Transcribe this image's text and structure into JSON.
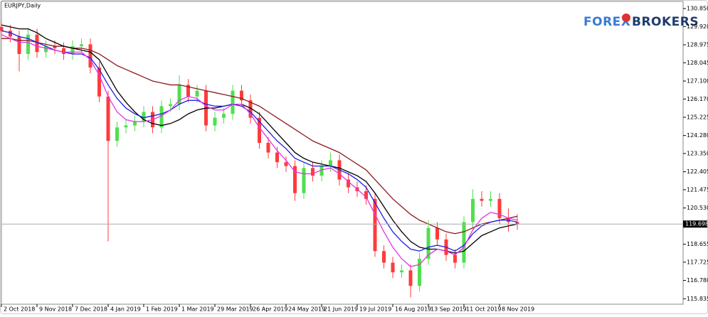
{
  "chart_data": {
    "type": "candlestick",
    "title": "EURJPY,Daily",
    "categories": [
      "2 Oct 2018",
      null,
      null,
      null,
      "9 Nov 2018",
      null,
      null,
      null,
      "7 Dec 2018",
      null,
      null,
      null,
      "4 Jan 2019",
      null,
      null,
      null,
      "1 Feb 2019",
      null,
      null,
      null,
      "1 Mar 2019",
      null,
      null,
      null,
      "29 Mar 2019",
      null,
      null,
      null,
      "26 Apr 2019",
      null,
      null,
      null,
      "24 May 2019",
      null,
      null,
      null,
      "21 Jun 2019",
      null,
      null,
      null,
      "19 Jul 2019",
      null,
      null,
      null,
      "16 Aug 2019",
      null,
      null,
      null,
      "13 Sep 2019",
      null,
      null,
      null,
      "11 Oct 2019",
      null,
      null,
      null,
      "8 Nov 2019",
      null,
      null
    ],
    "open": [
      129.9,
      129.7,
      129.4,
      128.5,
      129.5,
      128.6,
      128.9,
      128.8,
      128.5,
      128.9,
      129.0,
      127.8,
      126.3,
      124.0,
      124.7,
      124.8,
      125.0,
      125.5,
      124.7,
      125.8,
      125.9,
      126.9,
      126.3,
      126.6,
      124.8,
      125.2,
      125.4,
      126.6,
      126.1,
      125.2,
      123.9,
      123.4,
      122.9,
      122.7,
      121.3,
      122.6,
      122.2,
      122.7,
      123.0,
      122.0,
      121.6,
      121.4,
      121.0,
      118.3,
      117.7,
      117.2,
      117.3,
      116.5,
      117.9,
      119.5,
      118.9,
      118.1,
      117.7,
      119.8,
      121.0,
      120.9,
      121.0,
      120.0,
      119.8
    ],
    "high": [
      130.2,
      130.0,
      129.7,
      129.8,
      129.8,
      129.2,
      129.2,
      129.1,
      129.2,
      129.3,
      129.3,
      128.1,
      126.6,
      125.0,
      125.1,
      125.3,
      125.8,
      125.8,
      126.1,
      126.2,
      127.4,
      127.2,
      126.9,
      126.9,
      125.5,
      125.7,
      126.9,
      126.9,
      126.4,
      125.5,
      124.2,
      123.7,
      123.2,
      123.0,
      122.9,
      122.9,
      123.0,
      123.4,
      123.3,
      122.3,
      121.9,
      121.7,
      121.3,
      118.6,
      118.0,
      117.6,
      117.6,
      118.2,
      119.9,
      119.8,
      119.2,
      118.4,
      120.1,
      121.5,
      121.4,
      121.4,
      121.3,
      120.5,
      120.2
    ],
    "low": [
      129.4,
      129.1,
      127.6,
      128.2,
      128.3,
      128.3,
      128.5,
      128.2,
      128.2,
      128.6,
      127.5,
      126.0,
      118.8,
      123.7,
      124.4,
      124.5,
      124.7,
      124.4,
      124.4,
      125.5,
      125.6,
      126.0,
      126.0,
      124.5,
      124.5,
      124.9,
      125.1,
      125.8,
      124.9,
      123.6,
      123.1,
      122.6,
      122.4,
      120.9,
      121.0,
      121.9,
      121.9,
      122.4,
      121.7,
      121.3,
      121.1,
      120.7,
      118.0,
      117.4,
      116.9,
      116.9,
      115.9,
      116.2,
      117.6,
      118.6,
      117.8,
      117.4,
      117.4,
      119.5,
      120.6,
      120.6,
      119.7,
      119.3,
      119.4
    ],
    "close": [
      129.7,
      129.4,
      128.5,
      129.5,
      128.6,
      128.9,
      128.8,
      128.5,
      128.9,
      129.0,
      127.8,
      126.3,
      124.0,
      124.7,
      124.8,
      125.0,
      125.5,
      124.7,
      125.8,
      125.9,
      126.9,
      126.3,
      126.6,
      124.8,
      125.2,
      125.4,
      126.6,
      126.1,
      125.2,
      123.9,
      123.4,
      122.9,
      122.7,
      121.3,
      122.6,
      122.2,
      122.7,
      123.0,
      122.0,
      121.6,
      121.4,
      121.0,
      118.3,
      117.7,
      117.2,
      117.3,
      116.5,
      117.9,
      119.5,
      118.9,
      118.1,
      117.7,
      119.8,
      121.0,
      120.9,
      121.0,
      120.0,
      119.8,
      119.7
    ],
    "up_color": "#4ee04e",
    "down_color": "#ff3b3b",
    "lines": [
      {
        "color": "#8b1a1a",
        "values": [
          129.3,
          129.3,
          129.2,
          129.2,
          129.1,
          129.0,
          128.9,
          128.9,
          128.8,
          128.8,
          128.7,
          128.5,
          128.2,
          127.9,
          127.7,
          127.5,
          127.3,
          127.1,
          127.0,
          126.9,
          126.9,
          126.8,
          126.7,
          126.6,
          126.5,
          126.4,
          126.3,
          126.2,
          126.0,
          125.8,
          125.5,
          125.2,
          124.9,
          124.6,
          124.3,
          124.0,
          123.8,
          123.6,
          123.4,
          123.1,
          122.8,
          122.5,
          122.0,
          121.5,
          121.0,
          120.6,
          120.2,
          119.9,
          119.7,
          119.5,
          119.3,
          119.2,
          119.3,
          119.5,
          119.7,
          119.8,
          119.9,
          120.0,
          120.1
        ]
      },
      {
        "color": "#000000",
        "values": [
          130.0,
          129.9,
          129.8,
          129.8,
          129.6,
          129.3,
          129.1,
          128.9,
          128.8,
          128.7,
          128.6,
          128.2,
          127.4,
          126.6,
          126.0,
          125.5,
          125.1,
          124.9,
          124.8,
          124.9,
          125.1,
          125.4,
          125.6,
          125.7,
          125.7,
          125.8,
          125.9,
          125.9,
          125.7,
          125.4,
          124.9,
          124.4,
          123.9,
          123.4,
          123.1,
          122.9,
          122.8,
          122.7,
          122.6,
          122.4,
          122.2,
          121.9,
          121.3,
          120.6,
          119.9,
          119.3,
          118.8,
          118.5,
          118.4,
          118.4,
          118.3,
          118.2,
          118.3,
          118.7,
          119.1,
          119.3,
          119.5,
          119.6,
          119.7
        ]
      },
      {
        "color": "#1e1ee6",
        "values": [
          129.7,
          129.6,
          129.4,
          129.3,
          129.1,
          128.9,
          128.7,
          128.6,
          128.5,
          128.5,
          128.3,
          127.7,
          126.9,
          126.2,
          125.7,
          125.4,
          125.2,
          125.3,
          125.4,
          125.6,
          125.9,
          126.1,
          126.1,
          125.9,
          125.8,
          125.8,
          125.9,
          125.8,
          125.5,
          125.0,
          124.5,
          124.0,
          123.6,
          123.1,
          122.9,
          122.7,
          122.7,
          122.7,
          122.5,
          122.3,
          122.0,
          121.6,
          120.8,
          120.0,
          119.3,
          118.8,
          118.4,
          118.3,
          118.5,
          118.6,
          118.5,
          118.3,
          118.6,
          119.2,
          119.6,
          119.8,
          119.9,
          119.9,
          119.8
        ]
      },
      {
        "color": "#e632e6",
        "values": [
          129.5,
          129.3,
          129.1,
          129.1,
          128.9,
          128.8,
          128.7,
          128.6,
          128.6,
          128.6,
          128.2,
          127.4,
          126.3,
          125.5,
          125.1,
          125.0,
          125.0,
          125.1,
          125.3,
          125.6,
          126.1,
          126.3,
          126.2,
          125.8,
          125.6,
          125.6,
          125.9,
          125.9,
          125.4,
          124.7,
          124.1,
          123.5,
          123.0,
          122.4,
          122.3,
          122.3,
          122.5,
          122.6,
          122.3,
          121.9,
          121.5,
          121.1,
          120.2,
          119.3,
          118.5,
          117.9,
          117.5,
          117.6,
          118.1,
          118.4,
          118.3,
          118.1,
          118.5,
          119.4,
          120.0,
          120.3,
          120.2,
          120.0,
          119.9
        ]
      }
    ],
    "current_price": 119.698,
    "ylim": [
      115.55,
      131.22
    ],
    "yticks": [
      {
        "value": 130.85,
        "label": "130.850"
      },
      {
        "value": 129.92,
        "label": "129.920"
      },
      {
        "value": 128.975,
        "label": "128.975"
      },
      {
        "value": 128.045,
        "label": "128.045"
      },
      {
        "value": 127.1,
        "label": "127.100"
      },
      {
        "value": 126.17,
        "label": "126.170"
      },
      {
        "value": 125.225,
        "label": "125.225"
      },
      {
        "value": 124.28,
        "label": "124.280"
      },
      {
        "value": 123.35,
        "label": "123.350"
      },
      {
        "value": 122.405,
        "label": "122.405"
      },
      {
        "value": 121.475,
        "label": "121.475"
      },
      {
        "value": 120.53,
        "label": "120.530"
      },
      {
        "value": 118.655,
        "label": "118.655"
      },
      {
        "value": 117.725,
        "label": "117.725"
      },
      {
        "value": 116.78,
        "label": "116.780"
      },
      {
        "value": 115.835,
        "label": "115.835"
      }
    ]
  },
  "logo": {
    "left": "FOREX",
    "right": "BROKERS"
  }
}
